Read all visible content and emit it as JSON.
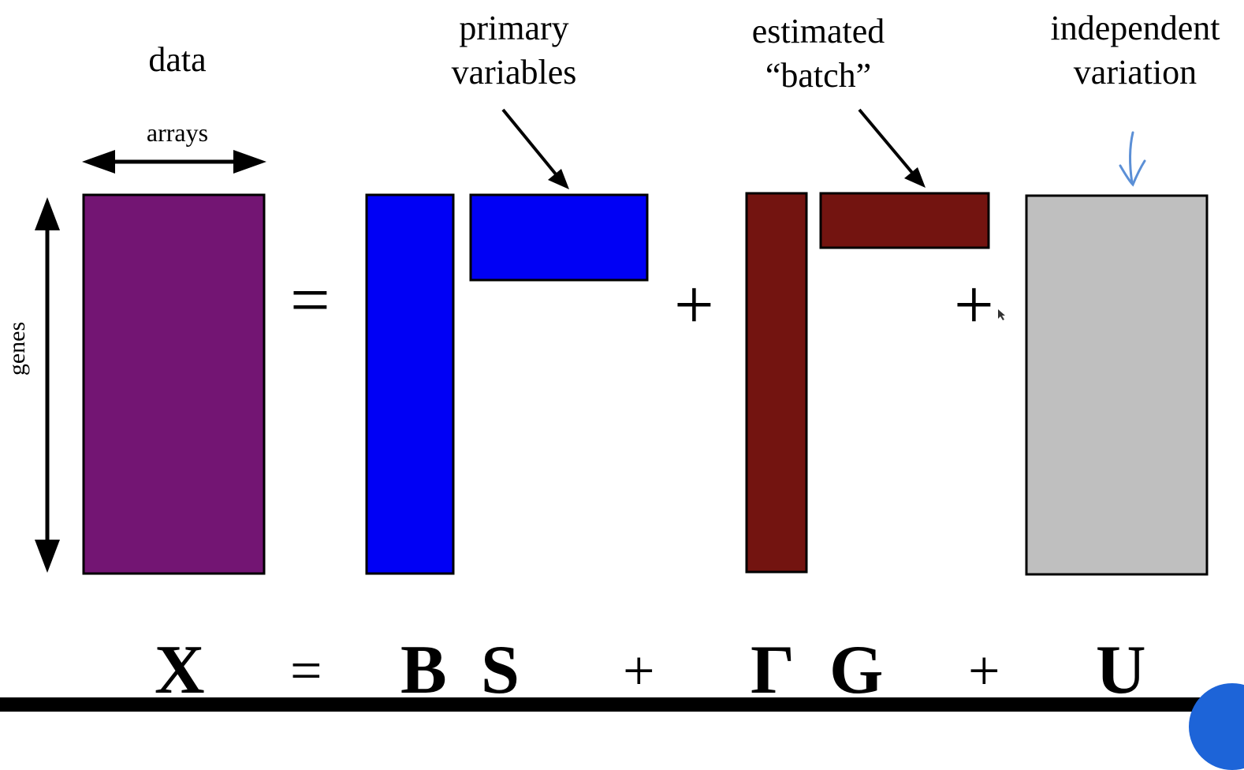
{
  "labels": {
    "data": "data",
    "arrays": "arrays",
    "genes": "genes",
    "primary_line1": "primary",
    "primary_line2": "variables",
    "batch_line1": "estimated",
    "batch_line2": "“batch”",
    "indep_line1": "independent",
    "indep_line2": "variation"
  },
  "operators": {
    "equals": "=",
    "plus1": "+",
    "plus2": "+"
  },
  "equation": {
    "X": "X",
    "eq": "=",
    "B": "B",
    "S": "S",
    "plus1": "+",
    "Gamma": "Γ",
    "G": "G",
    "plus2": "+",
    "U": "U"
  },
  "colors": {
    "data_matrix": "#731573",
    "primary": "#0000f5",
    "batch": "#731410",
    "independent": "#bfbfbf",
    "handwritten_arrow": "#5b8fd6",
    "corner_badge": "#1d64d8"
  }
}
